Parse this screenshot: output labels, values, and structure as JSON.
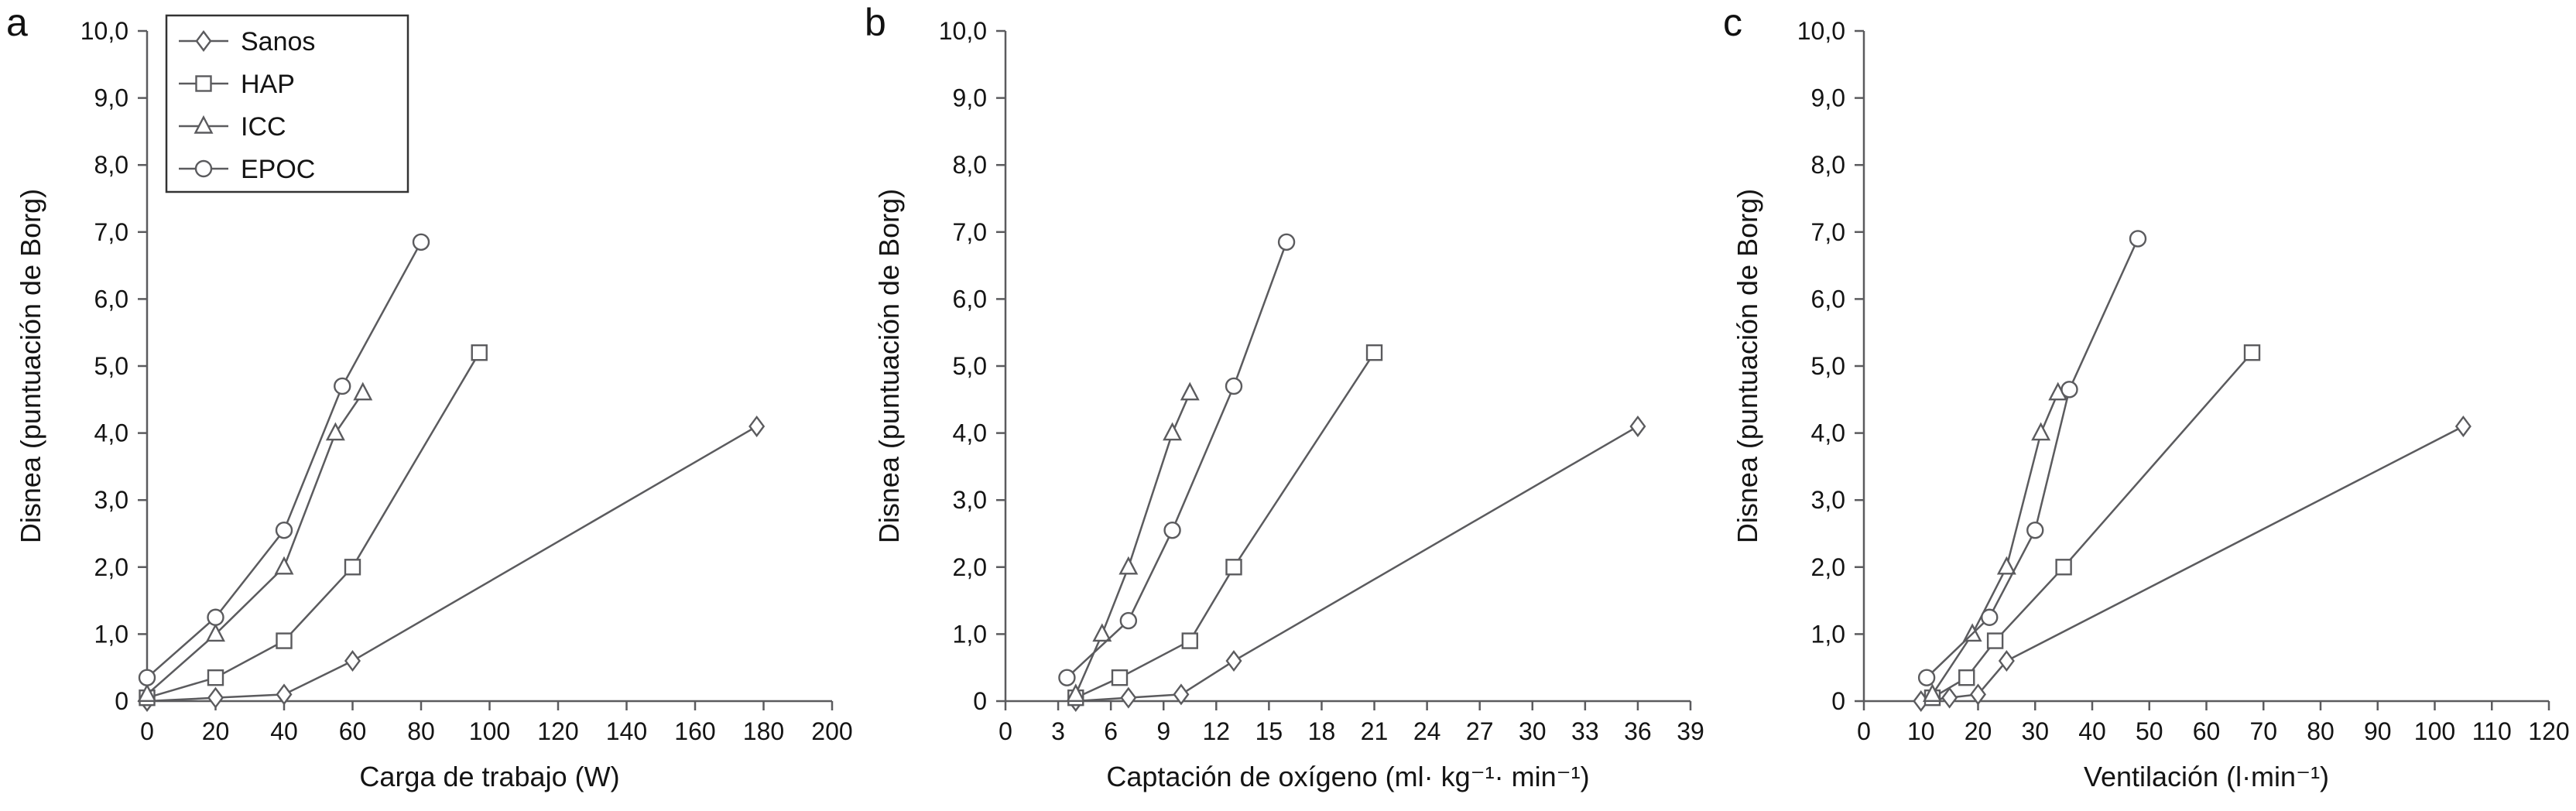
{
  "figure": {
    "background": "#ffffff",
    "line_color": "#5b5b5e",
    "marker_fill": "#ffffff",
    "text_color": "#141414",
    "legend_border": "#333333"
  },
  "legend": {
    "entries": [
      {
        "label": "Sanos",
        "marker": "diamond"
      },
      {
        "label": "HAP",
        "marker": "square"
      },
      {
        "label": "ICC",
        "marker": "triangle"
      },
      {
        "label": "EPOC",
        "marker": "circle"
      }
    ]
  },
  "chart_data": [
    {
      "type": "line",
      "panel_label": "a",
      "xlabel": "Carga de trabajo (W)",
      "ylabel": "Disnea (puntuación de Borg)",
      "xlim": [
        0,
        200
      ],
      "ylim": [
        0,
        10
      ],
      "xticks": [
        0,
        20,
        40,
        60,
        80,
        100,
        120,
        140,
        160,
        180,
        200
      ],
      "xtick_labels": [
        "0",
        "20",
        "40",
        "60",
        "80",
        "100",
        "120",
        "140",
        "160",
        "180",
        "200"
      ],
      "yticks": [
        0,
        1,
        2,
        3,
        4,
        5,
        6,
        7,
        8,
        9,
        10
      ],
      "ytick_labels": [
        "0",
        "1,0",
        "2,0",
        "3,0",
        "4,0",
        "5,0",
        "6,0",
        "7,0",
        "8,0",
        "9,0",
        "10,0"
      ],
      "grid": false,
      "legend": true,
      "legend_position": "upper-left",
      "series": [
        {
          "name": "Sanos",
          "marker": "diamond",
          "points": [
            [
              0,
              0
            ],
            [
              20,
              0.05
            ],
            [
              40,
              0.1
            ],
            [
              60,
              0.6
            ],
            [
              178,
              4.1
            ]
          ]
        },
        {
          "name": "HAP",
          "marker": "square",
          "points": [
            [
              0,
              0.05
            ],
            [
              20,
              0.35
            ],
            [
              40,
              0.9
            ],
            [
              60,
              2.0
            ],
            [
              97,
              5.2
            ]
          ]
        },
        {
          "name": "ICC",
          "marker": "triangle",
          "points": [
            [
              0,
              0.1
            ],
            [
              20,
              1.0
            ],
            [
              40,
              2.0
            ],
            [
              55,
              4.0
            ],
            [
              63,
              4.6
            ]
          ]
        },
        {
          "name": "EPOC",
          "marker": "circle",
          "points": [
            [
              0,
              0.35
            ],
            [
              20,
              1.25
            ],
            [
              40,
              2.55
            ],
            [
              57,
              4.7
            ],
            [
              80,
              6.85
            ]
          ]
        }
      ]
    },
    {
      "type": "line",
      "panel_label": "b",
      "xlabel": "Captación de oxígeno (ml· kg⁻¹· min⁻¹)",
      "ylabel": "Disnea (puntuación de Borg)",
      "xlim": [
        0,
        39
      ],
      "ylim": [
        0,
        10
      ],
      "xticks": [
        0,
        3,
        6,
        9,
        12,
        15,
        18,
        21,
        24,
        27,
        30,
        33,
        36,
        39
      ],
      "xtick_labels": [
        "0",
        "3",
        "6",
        "9",
        "12",
        "15",
        "18",
        "21",
        "24",
        "27",
        "30",
        "33",
        "36",
        "39"
      ],
      "yticks": [
        0,
        1,
        2,
        3,
        4,
        5,
        6,
        7,
        8,
        9,
        10
      ],
      "ytick_labels": [
        "0",
        "1,0",
        "2,0",
        "3,0",
        "4,0",
        "5,0",
        "6,0",
        "7,0",
        "8,0",
        "9,0",
        "10,0"
      ],
      "grid": false,
      "legend": false,
      "series": [
        {
          "name": "Sanos",
          "marker": "diamond",
          "points": [
            [
              4,
              0
            ],
            [
              7,
              0.05
            ],
            [
              10,
              0.1
            ],
            [
              13,
              0.6
            ],
            [
              36,
              4.1
            ]
          ]
        },
        {
          "name": "HAP",
          "marker": "square",
          "points": [
            [
              4,
              0.05
            ],
            [
              6.5,
              0.35
            ],
            [
              10.5,
              0.9
            ],
            [
              13,
              2.0
            ],
            [
              21,
              5.2
            ]
          ]
        },
        {
          "name": "ICC",
          "marker": "triangle",
          "points": [
            [
              4,
              0.1
            ],
            [
              5.5,
              1.0
            ],
            [
              7,
              2.0
            ],
            [
              9.5,
              4.0
            ],
            [
              10.5,
              4.6
            ]
          ]
        },
        {
          "name": "EPOC",
          "marker": "circle",
          "points": [
            [
              3.5,
              0.35
            ],
            [
              7,
              1.2
            ],
            [
              9.5,
              2.55
            ],
            [
              13,
              4.7
            ],
            [
              16,
              6.85
            ]
          ]
        }
      ]
    },
    {
      "type": "line",
      "panel_label": "c",
      "xlabel": "Ventilación (l·min⁻¹)",
      "ylabel": "Disnea (puntuación de Borg)",
      "xlim": [
        0,
        120
      ],
      "ylim": [
        0,
        10
      ],
      "xticks": [
        0,
        10,
        20,
        30,
        40,
        50,
        60,
        70,
        80,
        90,
        100,
        110,
        120
      ],
      "xtick_labels": [
        "0",
        "10",
        "20",
        "30",
        "40",
        "50",
        "60",
        "70",
        "80",
        "90",
        "100",
        "110",
        "120"
      ],
      "yticks": [
        0,
        1,
        2,
        3,
        4,
        5,
        6,
        7,
        8,
        9,
        10
      ],
      "ytick_labels": [
        "0",
        "1,0",
        "2,0",
        "3,0",
        "4,0",
        "5,0",
        "6,0",
        "7,0",
        "8,0",
        "9,0",
        "10,0"
      ],
      "grid": false,
      "legend": false,
      "series": [
        {
          "name": "Sanos",
          "marker": "diamond",
          "points": [
            [
              10,
              0
            ],
            [
              15,
              0.05
            ],
            [
              20,
              0.1
            ],
            [
              25,
              0.6
            ],
            [
              105,
              4.1
            ]
          ]
        },
        {
          "name": "HAP",
          "marker": "square",
          "points": [
            [
              12,
              0.05
            ],
            [
              18,
              0.35
            ],
            [
              23,
              0.9
            ],
            [
              35,
              2.0
            ],
            [
              68,
              5.2
            ]
          ]
        },
        {
          "name": "ICC",
          "marker": "triangle",
          "points": [
            [
              12,
              0.1
            ],
            [
              19,
              1.0
            ],
            [
              25,
              2.0
            ],
            [
              31,
              4.0
            ],
            [
              34,
              4.6
            ]
          ]
        },
        {
          "name": "EPOC",
          "marker": "circle",
          "points": [
            [
              11,
              0.35
            ],
            [
              22,
              1.25
            ],
            [
              30,
              2.55
            ],
            [
              36,
              4.65
            ],
            [
              48,
              6.9
            ]
          ]
        }
      ]
    }
  ]
}
